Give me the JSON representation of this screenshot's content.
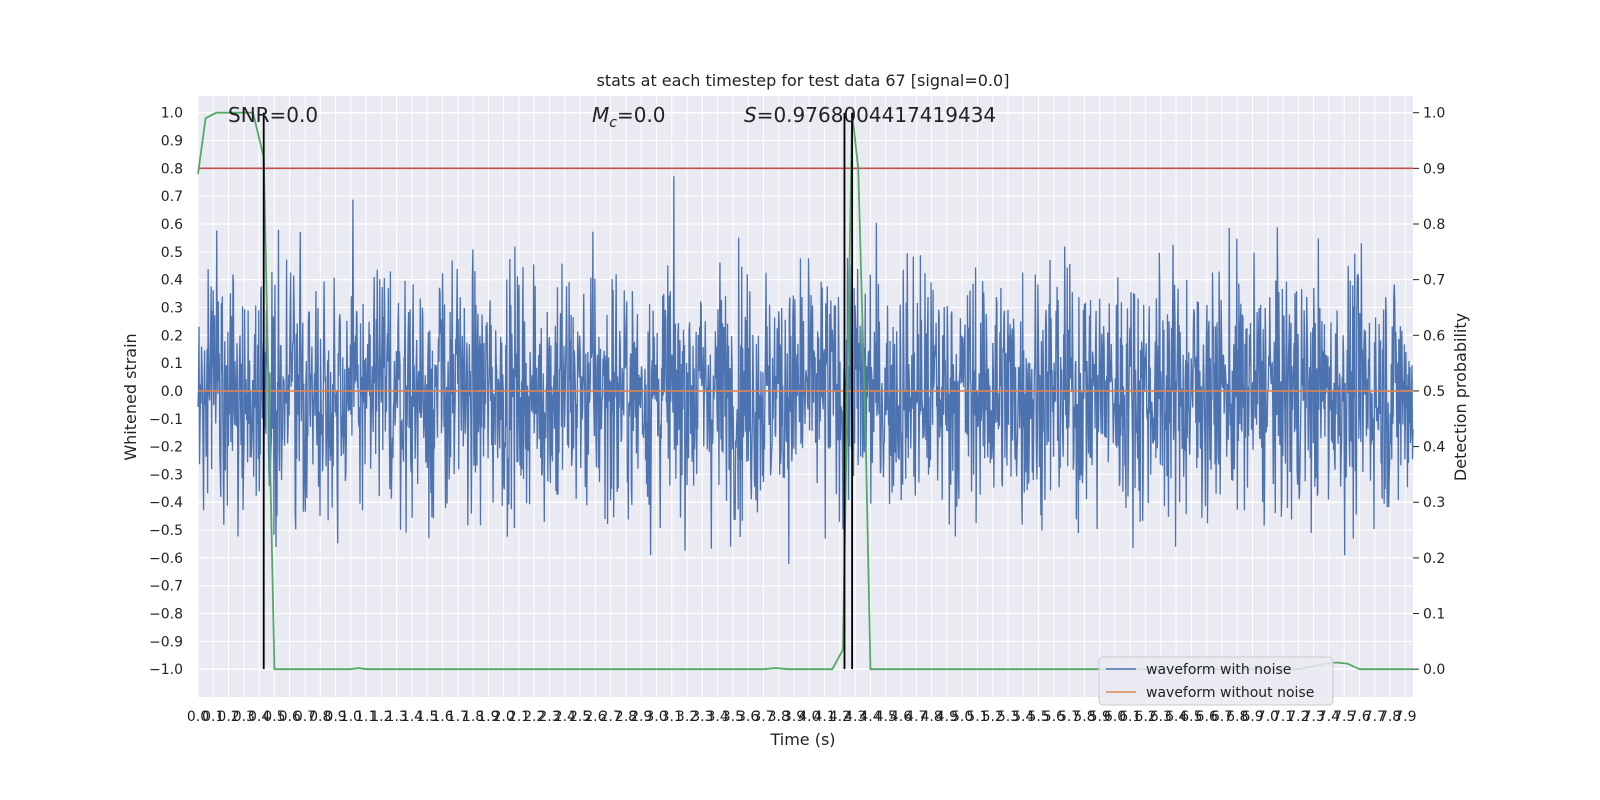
{
  "chart_data": {
    "type": "line",
    "title": "stats at each timestep for test data 67 [signal=0.0]",
    "xlabel": "Time (s)",
    "ylabel": "Whitened strain",
    "y2label": "Detection probability",
    "xlim": [
      0.0,
      7.95
    ],
    "ylim": [
      -1.1,
      1.06
    ],
    "y2lim": [
      -0.05,
      1.03
    ],
    "x_ticks": [
      "0.0",
      "0.1",
      "0.2",
      "0.3",
      "0.4",
      "0.5",
      "0.6",
      "0.7",
      "0.8",
      "0.9",
      "1.0",
      "1.1",
      "1.2",
      "1.3",
      "1.4",
      "1.5",
      "1.6",
      "1.7",
      "1.8",
      "1.9",
      "2.0",
      "2.1",
      "2.2",
      "2.3",
      "2.4",
      "2.5",
      "2.6",
      "2.7",
      "2.8",
      "2.9",
      "3.0",
      "3.1",
      "3.2",
      "3.3",
      "3.4",
      "3.5",
      "3.6",
      "3.7",
      "3.8",
      "3.9",
      "4.0",
      "4.1",
      "4.2",
      "4.3",
      "4.4",
      "4.5",
      "4.6",
      "4.7",
      "4.8",
      "4.9",
      "5.0",
      "5.1",
      "5.2",
      "5.3",
      "5.4",
      "5.5",
      "5.6",
      "5.7",
      "5.8",
      "5.9",
      "6.0",
      "6.1",
      "6.2",
      "6.3",
      "6.4",
      "6.5",
      "6.6",
      "6.7",
      "6.8",
      "6.9",
      "7.0",
      "7.1",
      "7.2",
      "7.3",
      "7.4",
      "7.5",
      "7.6",
      "7.7",
      "7.8",
      "7.9"
    ],
    "y_ticks": [
      "1.0",
      "0.9",
      "0.8",
      "0.7",
      "0.6",
      "0.5",
      "0.4",
      "0.3",
      "0.2",
      "0.1",
      "0.0",
      "−0.1",
      "−0.2",
      "−0.3",
      "−0.4",
      "−0.5",
      "−0.6",
      "−0.7",
      "−0.8",
      "−0.9",
      "−1.0"
    ],
    "y2_ticks": [
      "1.0",
      "0.9",
      "0.8",
      "0.7",
      "0.6",
      "0.5",
      "0.4",
      "0.3",
      "0.2",
      "0.1",
      "0.0"
    ],
    "annotations": {
      "snr": "SNR=0.0",
      "mc_sym": "M",
      "mc_sub": "c",
      "mc_val": "=0.0",
      "s_sym": "S",
      "s_val": "=0.9768004417419434"
    },
    "series": [
      {
        "name": "waveform with noise",
        "color": "#4c72b0",
        "amplitude_typical": 0.5,
        "amplitude_max": 0.95
      },
      {
        "name": "waveform without noise",
        "color": "#dd8452",
        "value": 0.0
      }
    ],
    "threshold": {
      "y2": 0.9,
      "color": "#c44e52"
    },
    "vertical_markers_x": [
      0.43,
      4.23,
      4.28
    ],
    "detection_probability": {
      "color": "#55a868",
      "x": [
        0.0,
        0.05,
        0.12,
        0.2,
        0.3,
        0.36,
        0.43,
        0.5,
        0.6,
        1.0,
        1.05,
        1.1,
        1.2,
        2.0,
        3.0,
        3.7,
        3.78,
        3.86,
        4.0,
        4.15,
        4.22,
        4.28,
        4.32,
        4.37,
        4.4,
        4.45,
        5.0,
        6.0,
        7.0,
        7.2,
        7.38,
        7.45,
        7.52,
        7.6,
        7.95
      ],
      "y": [
        0.89,
        0.99,
        1.0,
        1.0,
        1.0,
        1.0,
        0.92,
        0.0,
        0.0,
        0.0,
        0.002,
        0.0,
        0.0,
        0.0,
        0.0,
        0.0,
        0.002,
        0.0,
        0.0,
        0.0,
        0.035,
        1.0,
        0.9,
        0.4,
        0.0,
        0.0,
        0.0,
        0.0,
        0.0,
        0.0,
        0.01,
        0.012,
        0.01,
        0.0,
        0.0
      ]
    }
  }
}
